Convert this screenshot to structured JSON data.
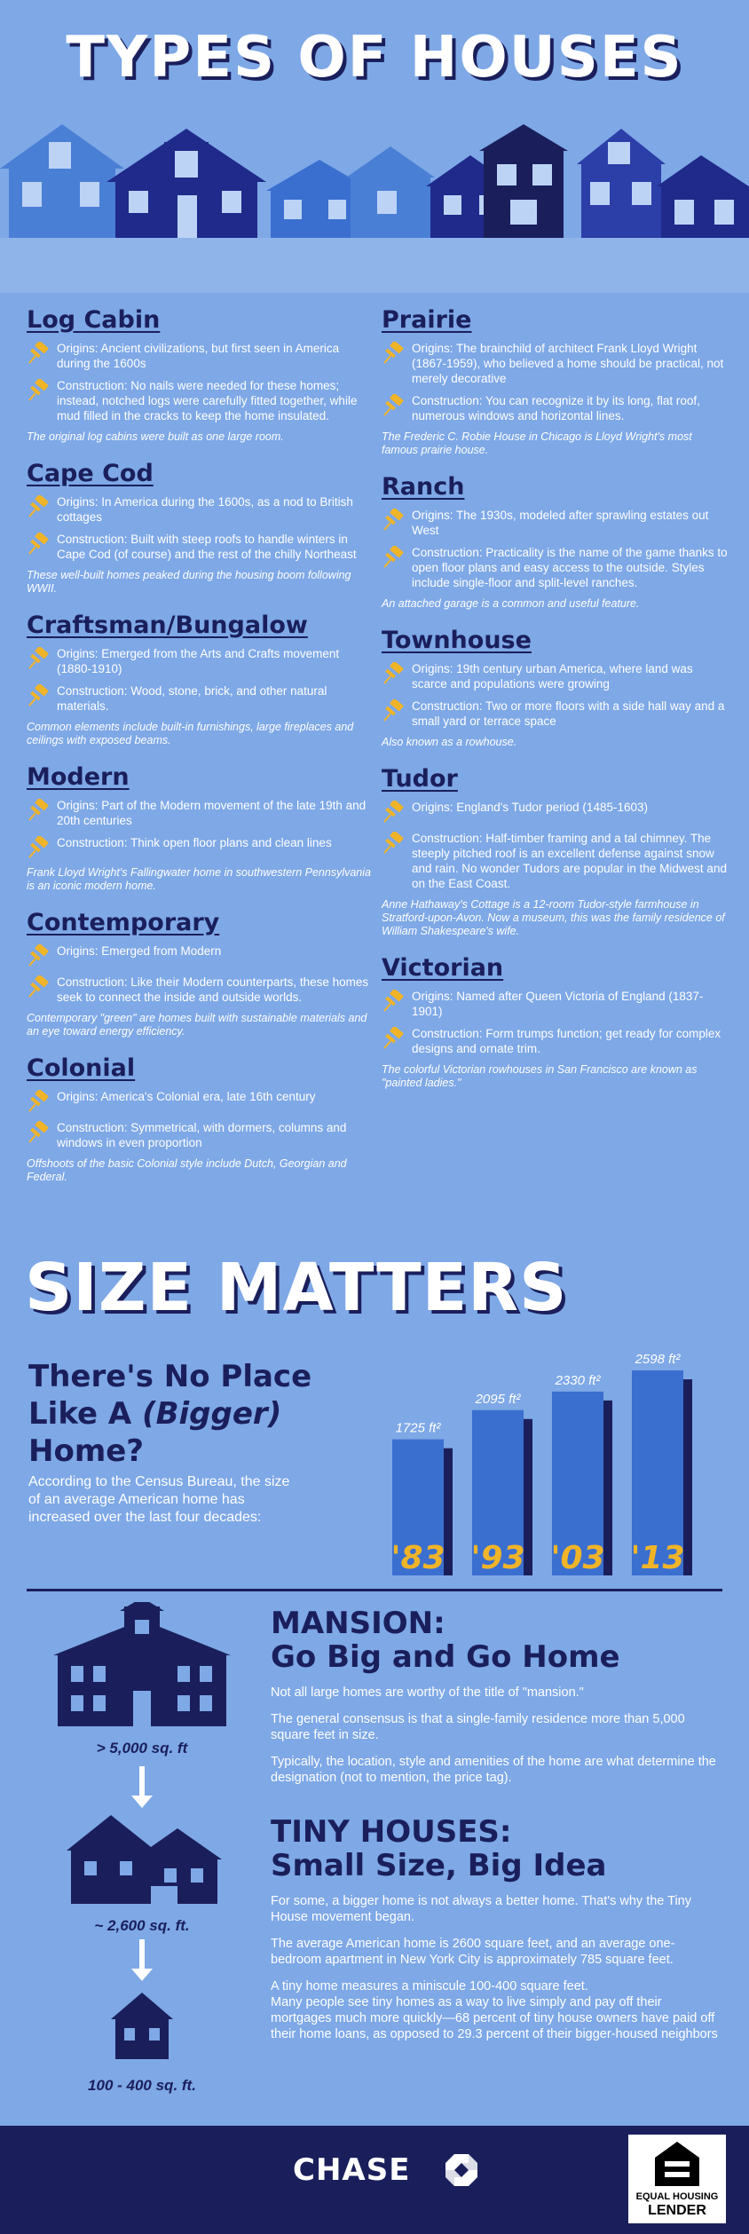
{
  "title": "TYPES OF HOUSES",
  "types_left": [
    {
      "name": "Log Cabin",
      "origins": "Origins: Ancient civilizations, but first seen in America during the 1600s",
      "construction": "Construction: No nails were needed for these homes; instead, notched logs were carefully fitted together, while mud filled in the cracks to keep the home insulated.",
      "note": "The original log cabins were built as one large room."
    },
    {
      "name": "Cape Cod",
      "origins": "Origins: In America during the 1600s, as a nod to British cottages",
      "construction": "Construction: Built with steep roofs to handle winters in Cape Cod (of course) and the rest of the chilly Northeast",
      "note": "These well-built homes peaked during the housing boom following WWII."
    },
    {
      "name": "Craftsman/Bungalow",
      "origins": "Origins: Emerged from the Arts and Crafts movement (1880-1910)",
      "construction": "Construction: Wood, stone, brick, and other natural materials.",
      "note": "Common elements include built-in furnishings, large fireplaces and ceilings with exposed beams."
    },
    {
      "name": "Modern",
      "origins": "Origins: Part of the Modern movement of the late 19th and 20th centuries",
      "construction": "Construction: Think open floor plans and clean lines",
      "note": "Frank Lloyd Wright's Fallingwater home in southwestern Pennsylvania is an iconic modern home."
    },
    {
      "name": "Contemporary",
      "origins": "Origins: Emerged from Modern",
      "construction": "Construction: Like their Modern counterparts, these homes seek to connect the inside and outside worlds.",
      "note": "Contemporary \"green\" are homes built with sustainable materials and an eye toward energy efficiency."
    },
    {
      "name": "Colonial",
      "origins": "Origins: America's Colonial era, late 16th century",
      "construction": "Construction: Symmetrical, with dormers, columns and windows in even proportion",
      "note": "Offshoots of the basic Colonial style include Dutch, Georgian and Federal."
    }
  ],
  "types_right": [
    {
      "name": "Prairie",
      "origins": "Origins: The brainchild of architect Frank Lloyd Wright (1867-1959), who believed a home should be practical, not merely decorative",
      "construction": "Construction: You can recognize it by its long, flat roof, numerous windows and horizontal lines.",
      "note": "The Frederic C. Robie House in Chicago is Lloyd Wright's most famous prairie house."
    },
    {
      "name": "Ranch",
      "origins": "Origins: The 1930s, modeled after sprawling estates out West",
      "construction": "Construction: Practicality is the name of the game thanks to open floor plans and easy access to the outside. Styles include single-floor and split-level ranches.",
      "note": "An attached garage is a common and useful feature."
    },
    {
      "name": "Townhouse",
      "origins": "Origins: 19th century urban America, where land was scarce and populations were growing",
      "construction": "Construction: Two or more floors with a side hall way and a small yard or terrace space",
      "note": "Also known as a rowhouse."
    },
    {
      "name": "Tudor",
      "origins": "Origins: England's Tudor period (1485-1603)",
      "construction": "Construction: Half-timber framing and a tal chimney. The steeply pitched roof is an excellent defense against snow and rain. No wonder Tudors are popular in the Midwest and on the East Coast.",
      "note": "Anne Hathaway's Cottage is a 12-room Tudor-style farmhouse in Stratford-upon-Avon. Now a museum, this was the family residence of William Shakespeare's wife."
    },
    {
      "name": "Victorian",
      "origins": "Origins: Named after Queen Victoria of England (1837-1901)",
      "construction": "Construction: Form trumps function; get ready for complex designs and ornate trim.",
      "note": "The colorful Victorian rowhouses in San Francisco are known as \"painted ladies.\""
    }
  ],
  "size": {
    "title": "SIZE MATTERS",
    "heading_1": "There's No Place",
    "heading_2": "Like A ",
    "heading_italic": "(Bigger)",
    "heading_3": "Home?",
    "description": "According to the Census Bureau, the size of an average American home has increased over the last four decades:"
  },
  "chart_data": {
    "type": "bar",
    "categories": [
      "'83",
      "'93",
      "'03",
      "'13"
    ],
    "values": [
      1725,
      2095,
      2330,
      2598
    ],
    "value_labels": [
      "1725 ft²",
      "2095 ft²",
      "2330 ft²",
      "2598 ft²"
    ],
    "ylim": [
      0,
      2700
    ]
  },
  "mansion": {
    "title_1": "MANSION:",
    "title_2": "Go Big and Go Home",
    "p1": "Not all large homes are worthy of the title of \"mansion.\"",
    "p2": "The general consensus is that a single-family residence more than 5,000 square feet in size.",
    "p3": "Typically, the location, style and amenities of the home are what determine the designation (not to mention, the price tag)."
  },
  "tiny": {
    "title_1": "TINY HOUSES:",
    "title_2": "Small Size, Big Idea",
    "p1": "For some, a bigger home is not always a better home. That's why the Tiny House movement began.",
    "p2": "The average American home is 2600 square feet, and an average one-bedroom apartment in New York City is approximately 785 square feet.",
    "p3": "A tiny home measures a miniscule 100-400 square feet.",
    "p4": "Many people see tiny homes as a way to live simply and pay off their mortgages much more quickly—68 percent of tiny house owners have paid off their home loans, as opposed to 29.3 percent of their bigger-housed neighbors"
  },
  "size_labels": {
    "large": "> 5,000  sq. ft",
    "medium": "~ 2,600  sq. ft.",
    "small": "100 - 400  sq. ft."
  },
  "footer": {
    "brand": "CHASE",
    "ehl_1": "EQUAL HOUSING",
    "ehl_2": "LENDER"
  },
  "colors": {
    "background": "#7ea8e6",
    "navy": "#1a1f5c",
    "bar": "#3a6fd0",
    "accent": "#f0b429"
  }
}
